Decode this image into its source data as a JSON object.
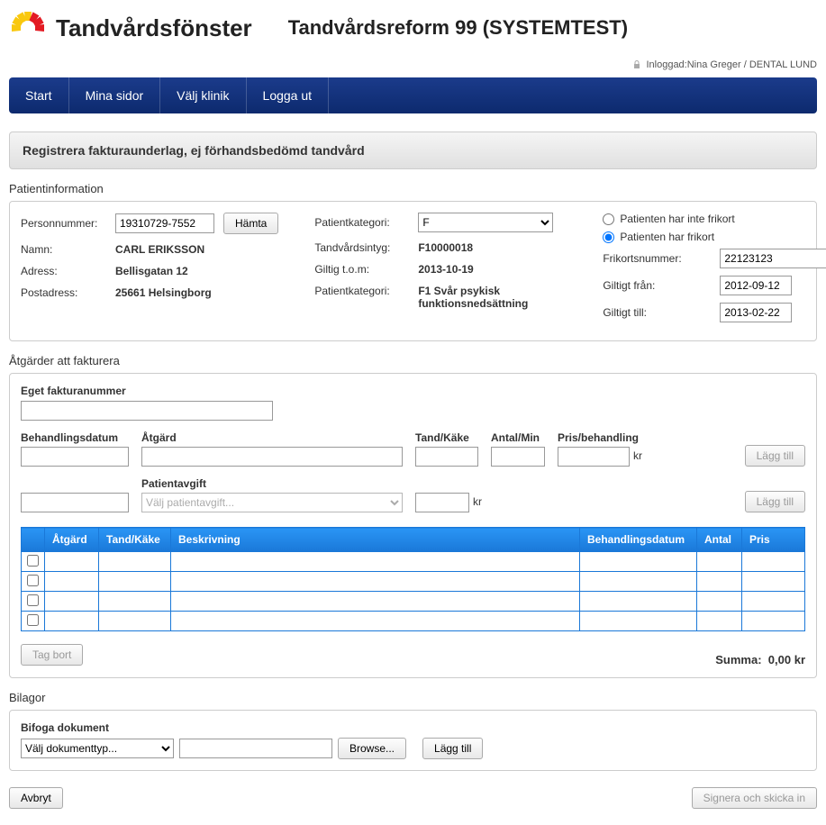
{
  "header": {
    "brand": "Tandvårdsfönster",
    "system_title": "Tandvårdsreform 99 (SYSTEMTEST)",
    "login_prefix": "Inloggad:",
    "login_user": "Nina Greger / DENTAL LUND"
  },
  "nav": {
    "items": [
      "Start",
      "Mina sidor",
      "Välj klinik",
      "Logga ut"
    ]
  },
  "page_title": "Registrera fakturaunderlag, ej förhandsbedömd tandvård",
  "patient": {
    "section_label": "Patientinformation",
    "personnummer_label": "Personnummer:",
    "personnummer_value": "19310729-7552",
    "hamta_btn": "Hämta",
    "namn_label": "Namn:",
    "namn_value": "CARL ERIKSSON",
    "adress_label": "Adress:",
    "adress_value": "Bellisgatan 12",
    "postadress_label": "Postadress:",
    "postadress_value": "25661 Helsingborg",
    "patientkategori_label": "Patientkategori:",
    "patientkategori_select": "F",
    "tandvardsintyg_label": "Tandvårdsintyg:",
    "tandvardsintyg_value": "F10000018",
    "giltig_tom_label": "Giltig t.o.m:",
    "giltig_tom_value": "2013-10-19",
    "patientkategori2_label": "Patientkategori:",
    "patientkategori2_value": "F1 Svår psykisk funktionsnedsättning",
    "radio_no_frikort": "Patienten har inte frikort",
    "radio_has_frikort": "Patienten har frikort",
    "frikortsnummer_label": "Frikortsnummer:",
    "frikortsnummer_value": "22123123",
    "giltigt_fran_label": "Giltigt från:",
    "giltigt_fran_value": "2012-09-12",
    "giltigt_till_label": "Giltigt till:",
    "giltigt_till_value": "2013-02-22"
  },
  "actions": {
    "section_label": "Åtgärder att fakturera",
    "eget_fakturanummer_label": "Eget fakturanummer",
    "behandlingsdatum_label": "Behandlingsdatum",
    "atgard_label": "Åtgärd",
    "tand_kake_label": "Tand/Käke",
    "antal_min_label": "Antal/Min",
    "pris_behandling_label": "Pris/behandling",
    "kr": "kr",
    "lagg_till_btn": "Lägg till",
    "patientavgift_label": "Patientavgift",
    "patientavgift_placeholder": "Välj patientavgift...",
    "table": {
      "headers": [
        "Åtgärd",
        "Tand/Käke",
        "Beskrivning",
        "Behandlingsdatum",
        "Antal",
        "Pris"
      ],
      "row_count": 4
    },
    "tag_bort_btn": "Tag bort",
    "summa_label": "Summa:",
    "summa_value": "0,00 kr"
  },
  "bilagor": {
    "section_label": "Bilagor",
    "bifoga_label": "Bifoga dokument",
    "doc_type_placeholder": "Välj dokumenttyp...",
    "browse_btn": "Browse...",
    "lagg_till_btn": "Lägg till"
  },
  "bottom": {
    "avbryt_btn": "Avbryt",
    "signera_btn": "Signera och skicka in"
  },
  "colors": {
    "nav_bg_top": "#1b3b8b",
    "nav_bg_bottom": "#0d2a6e",
    "table_header": "#1a78d8",
    "logo_red": "#e31b23",
    "logo_yellow": "#f9c80e"
  }
}
